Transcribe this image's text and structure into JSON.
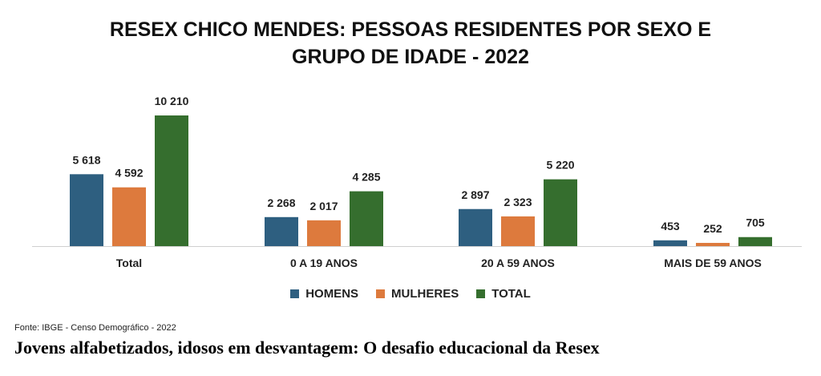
{
  "chart_data": {
    "type": "bar",
    "title_lines": [
      "RESEX CHICO MENDES: PESSOAS RESIDENTES POR SEXO E",
      "GRUPO DE IDADE  - 2022"
    ],
    "categories": [
      "Total",
      "0 A 19 ANOS",
      "20 A 59 ANOS",
      "MAIS DE 59 ANOS"
    ],
    "series": [
      {
        "name": "HOMENS",
        "color": "#2e5f80",
        "values": [
          5618,
          2268,
          2897,
          453
        ],
        "labels": [
          "5 618",
          "2 268",
          "2 897",
          "453"
        ]
      },
      {
        "name": "MULHERES",
        "color": "#dd7a3d",
        "values": [
          4592,
          2017,
          2323,
          252
        ],
        "labels": [
          "4 592",
          "2 017",
          "2 323",
          "252"
        ]
      },
      {
        "name": "TOTAL",
        "color": "#356e2e",
        "values": [
          10210,
          4285,
          5220,
          705
        ],
        "labels": [
          "10 210",
          "4 285",
          "5 220",
          "705"
        ]
      }
    ],
    "ylim": [
      0,
      10210
    ],
    "grid": false,
    "legend": "bottom"
  },
  "source": "Fonte: IBGE - Censo Demográfico - 2022",
  "caption": "Jovens alfabetizados, idosos em desvantagem: O desafio educacional da Resex"
}
